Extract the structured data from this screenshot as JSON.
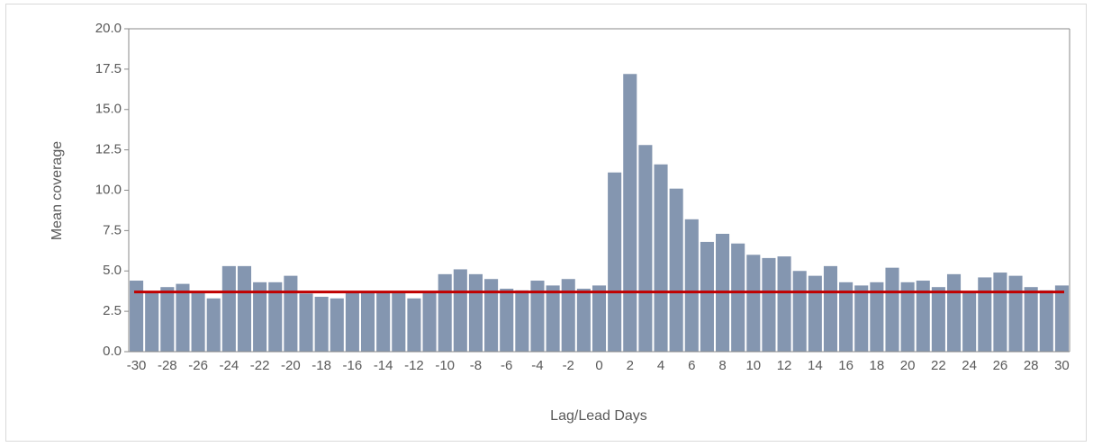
{
  "chart_data": {
    "type": "bar",
    "x_label": "Lag/Lead Days",
    "y_label": "Mean coverage",
    "categories": [
      "-30",
      null,
      "-28",
      null,
      "-26",
      null,
      "-24",
      null,
      "-22",
      null,
      "-20",
      null,
      "-18",
      null,
      "-16",
      null,
      "-14",
      null,
      "-12",
      null,
      "-10",
      null,
      "-8",
      null,
      "-6",
      null,
      "-4",
      null,
      "-2",
      null,
      "0",
      null,
      "2",
      null,
      "4",
      null,
      "6",
      null,
      "8",
      null,
      "10",
      null,
      "12",
      null,
      "14",
      null,
      "16",
      null,
      "18",
      null,
      "20",
      null,
      "22",
      null,
      "24",
      null,
      "26",
      null,
      "28",
      null,
      "30"
    ],
    "values": [
      4.4,
      3.7,
      4.0,
      4.2,
      3.7,
      3.3,
      5.3,
      5.3,
      4.3,
      4.3,
      4.7,
      3.6,
      3.4,
      3.3,
      3.7,
      3.7,
      3.7,
      3.7,
      3.3,
      3.7,
      4.8,
      5.1,
      4.8,
      4.5,
      3.9,
      3.8,
      4.4,
      4.1,
      4.5,
      3.9,
      4.1,
      11.1,
      17.2,
      12.8,
      11.6,
      10.1,
      8.2,
      6.8,
      7.3,
      6.7,
      6.0,
      5.8,
      5.9,
      5.0,
      4.7,
      5.3,
      4.3,
      4.1,
      4.3,
      5.2,
      4.3,
      4.4,
      4.0,
      4.8,
      3.7,
      4.6,
      4.9,
      4.7,
      4.0,
      3.8,
      4.1
    ],
    "color": "#8496b0",
    "reference_line": {
      "value": 3.7,
      "color": "#c00000"
    },
    "ylim": [
      0,
      20
    ],
    "yticks": [
      {
        "value": 0,
        "label": "0.0"
      },
      {
        "value": 2.5,
        "label": "2.5"
      },
      {
        "value": 5,
        "label": "5.0"
      },
      {
        "value": 7.5,
        "label": "7.5"
      },
      {
        "value": 10,
        "label": "10.0"
      },
      {
        "value": 12.5,
        "label": "12.5"
      },
      {
        "value": 15,
        "label": "15.0"
      },
      {
        "value": 17.5,
        "label": "17.5"
      },
      {
        "value": 20,
        "label": "20.0"
      }
    ],
    "grid": false
  }
}
